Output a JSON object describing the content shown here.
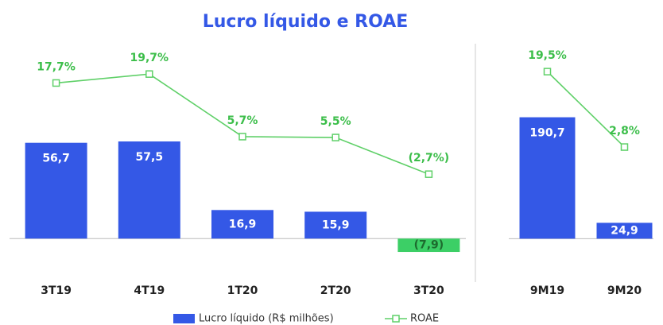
{
  "chart_data": [
    {
      "type": "bar",
      "title": "Lucro líquido e ROAE",
      "categories": [
        "3T19",
        "4T19",
        "1T20",
        "2T20",
        "3T20"
      ],
      "ylim": [
        -14,
        113
      ],
      "y2lim": [
        -22.4,
        25.6
      ],
      "series": [
        {
          "name": "Lucro líquido (R$ milhões)",
          "color": "#3458e6",
          "negative_color": "#3ccf66",
          "values": [
            56.7,
            57.5,
            16.9,
            15.9,
            -7.9
          ],
          "value_labels": [
            "56,7",
            "57,5",
            "16,9",
            "15,9",
            "(7,9)"
          ]
        },
        {
          "name": "ROAE",
          "type": "line",
          "axis": "y2",
          "color": "#5fd068",
          "values": [
            17.7,
            19.7,
            5.7,
            5.5,
            -2.7
          ],
          "value_labels": [
            "17,7%",
            "19,7%",
            "5,7%",
            "5,5%",
            "(2,7%)"
          ]
        }
      ]
    },
    {
      "type": "bar",
      "categories": [
        "9M19",
        "9M20"
      ],
      "ylim": [
        -37,
        300
      ],
      "y2lim": [
        -22.7,
        24.8
      ],
      "series": [
        {
          "color": "#3458e6",
          "values": [
            190.7,
            24.9
          ],
          "value_labels": [
            "190,7",
            "24,9"
          ]
        },
        {
          "type": "line",
          "axis": "y2",
          "color": "#5fd068",
          "values": [
            19.5,
            2.8
          ],
          "value_labels": [
            "19,5%",
            "2,8%"
          ]
        }
      ]
    }
  ]
}
